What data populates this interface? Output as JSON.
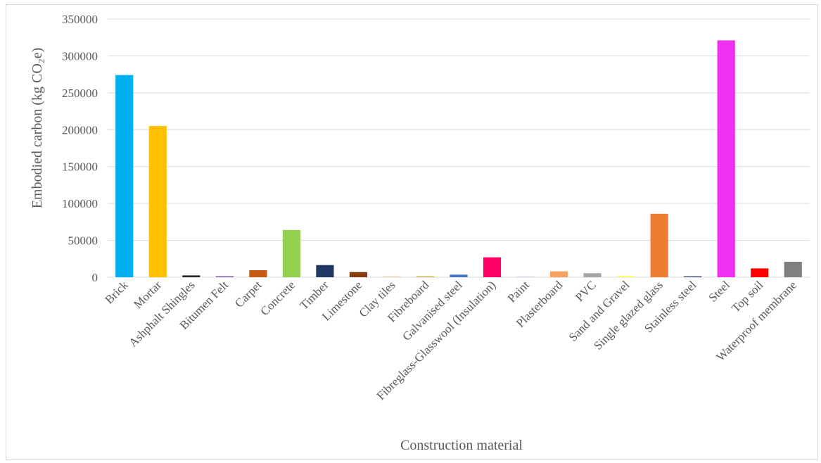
{
  "chart_data": {
    "type": "bar",
    "title": "",
    "xlabel": "Construction material",
    "ylabel": "Embodied carbon (kg CO₂e)",
    "ylim": [
      0,
      350000
    ],
    "yticks": [
      0,
      50000,
      100000,
      150000,
      200000,
      250000,
      300000,
      350000
    ],
    "grid": true,
    "legend": "none",
    "categories": [
      "Brick",
      "Mortar",
      "Ashphalt Shingles",
      "Bitumen Felt",
      "Carpet",
      "Concrete",
      "Timber",
      "Limestone",
      "Clay tiles",
      "Fibreboard",
      "Galvanised steel",
      "Fibreglass-Glasswool (Insulation)",
      "Paint",
      "Plasterboard",
      "PVC",
      "Sand and Gravel",
      "Single glazed glass",
      "Stainless steel",
      "Steel",
      "Top soil",
      "Waterproof membrane"
    ],
    "values": [
      274000,
      205000,
      2500,
      1200,
      9500,
      64000,
      16500,
      7000,
      800,
      1000,
      3500,
      27000,
      600,
      8000,
      5500,
      2000,
      86000,
      1200,
      321000,
      12000,
      21000
    ],
    "colors": [
      "#00b0f0",
      "#ffc000",
      "#262626",
      "#7030a0",
      "#c55a11",
      "#92d050",
      "#1f3864",
      "#843c0c",
      "#f4b183",
      "#bf9000",
      "#4472c4",
      "#ff0066",
      "#b4a7d6",
      "#f4a460",
      "#a6a6a6",
      "#ffff66",
      "#ed7d31",
      "#203864",
      "#f030f0",
      "#ff0000",
      "#7f7f7f"
    ]
  }
}
